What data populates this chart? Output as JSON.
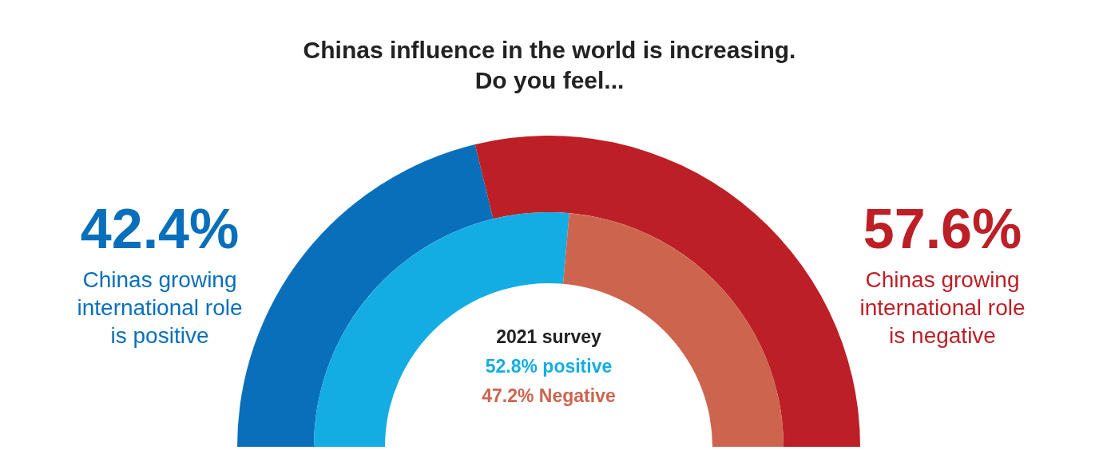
{
  "chart_data": {
    "type": "donut",
    "title": "Chinas influence in the world is increasing.\nDo you feel...",
    "categories": [
      "Chinas growing international role is positive",
      "Chinas growing international role is negative"
    ],
    "series": [
      {
        "values": [
          42.4,
          57.6
        ],
        "colors": [
          "#0a6fba",
          "#bd1f26"
        ],
        "value_labels": [
          "42.4%",
          "57.6%"
        ]
      },
      {
        "name": "2021 survey",
        "values": [
          52.8,
          47.2
        ],
        "colors": [
          "#13ade4",
          "#cd654e"
        ]
      }
    ],
    "annotations": [
      "52.8% positive",
      "47.2% Negative"
    ]
  }
}
